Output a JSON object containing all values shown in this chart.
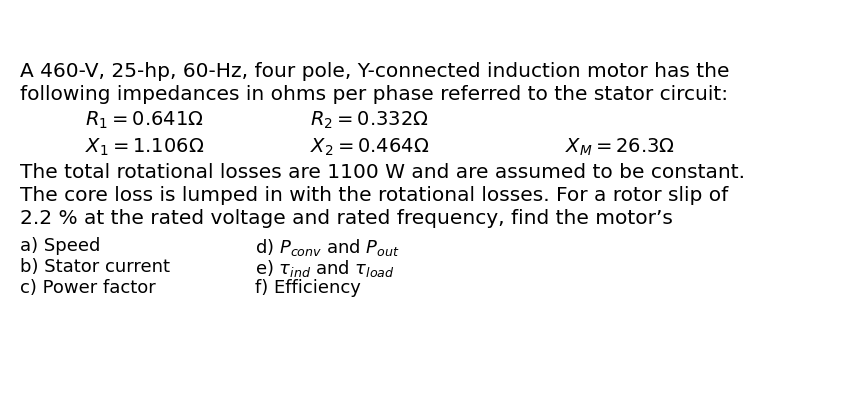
{
  "bg_color": "#ffffff",
  "title_line1": "A 460-V, 25-hp, 60-Hz, four pole, Y-connected induction motor has the",
  "title_line2": "following impedances in ohms per phase referred to the stator circuit:",
  "eq_R1": "$R_1 = 0.641\\Omega$",
  "eq_R2": "$R_2 = 0.332\\Omega$",
  "eq_X1": "$X_1 = 1.106\\Omega$",
  "eq_X2": "$X_2 = 0.464\\Omega$",
  "eq_XM": "$X_M = 26.3\\Omega$",
  "body_line1": "The total rotational losses are 1100 W and are assumed to be constant.",
  "body_line2": "The core loss is lumped in with the rotational losses. For a rotor slip of",
  "body_line3": "2.2 % at the rated voltage and rated frequency, find the motor’s",
  "list_a": "a) Speed",
  "list_b": "b) Stator current",
  "list_c": "c) Power factor",
  "list_d_text": "d) $P_{conv}$ and $P_{out}$",
  "list_e_text": "e) $\\tau_{ind}$ and $\\tau_{load}$",
  "list_f": "f) Efficiency",
  "main_fontsize": 14.5,
  "eq_fontsize": 14.0,
  "list_fontsize": 13.0,
  "fig_width": 8.64,
  "fig_height": 4.13,
  "dpi": 100
}
